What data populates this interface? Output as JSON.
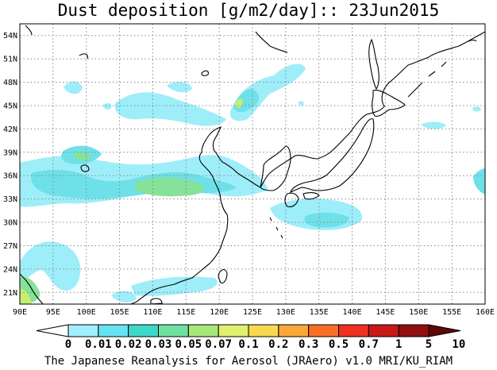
{
  "title": "Dust deposition [g/m2/day]:: 23Jun2015",
  "footer": "The Japanese Reanalysis for Aerosol (JRAero) v1.0 MRI/KU_RIAM",
  "lon_labels": [
    "90E",
    "95E",
    "100E",
    "105E",
    "110E",
    "115E",
    "120E",
    "125E",
    "130E",
    "135E",
    "140E",
    "145E",
    "150E",
    "155E",
    "160E"
  ],
  "lat_labels": [
    "21N",
    "24N",
    "27N",
    "30N",
    "33N",
    "36N",
    "39N",
    "42N",
    "45N",
    "48N",
    "51N",
    "54N"
  ],
  "map_extent": {
    "lon_min": 90,
    "lon_max": 160,
    "lat_min": 19.5,
    "lat_max": 55.5
  },
  "colorbar": {
    "labels": [
      "0",
      "0.01",
      "0.02",
      "0.03",
      "0.05",
      "0.07",
      "0.1",
      "0.2",
      "0.3",
      "0.5",
      "0.7",
      "1",
      "5",
      "10"
    ],
    "colors": [
      "#ffffff",
      "#a0f0ff",
      "#66e3f2",
      "#3ed8c8",
      "#70e0a0",
      "#a8e878",
      "#e0f070",
      "#f8d850",
      "#f8a838",
      "#f87028",
      "#f03020",
      "#c81818",
      "#901010",
      "#600808"
    ]
  },
  "colors": {
    "level1": "#9eeefa",
    "level2": "#6ee0e8",
    "level3": "#55dcc0",
    "level4": "#86e29a",
    "level5": "#c8ee6e"
  }
}
